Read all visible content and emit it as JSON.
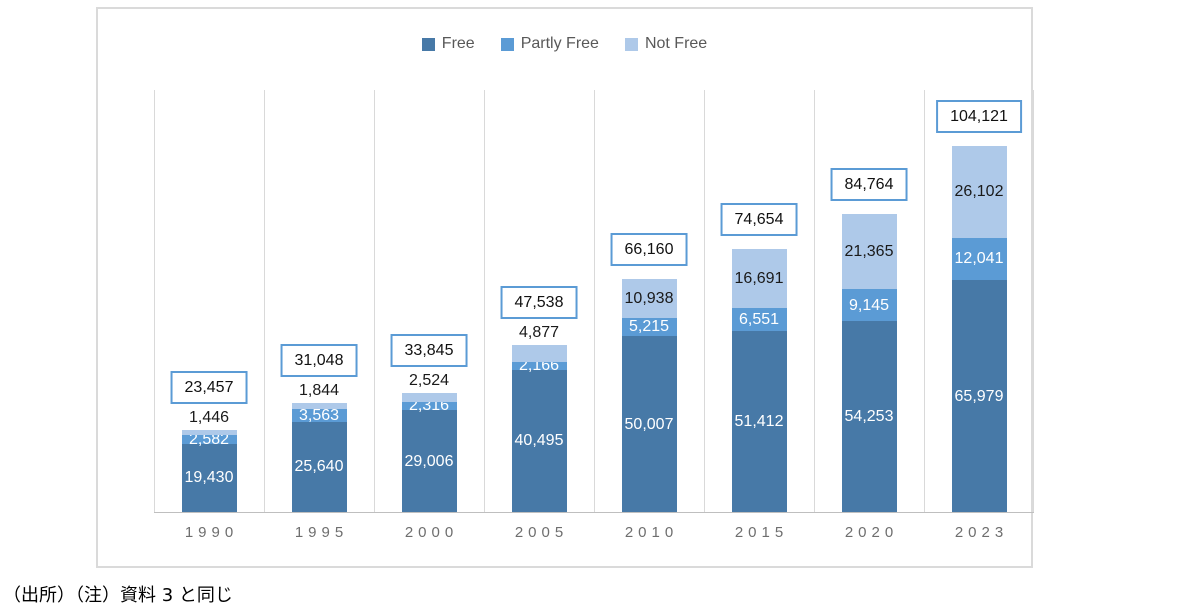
{
  "source_note": "（出所）（注）資料 3 と同じ",
  "colors": {
    "free": "#4779a7",
    "partly_free": "#5b9bd5",
    "not_free": "#aec9e9",
    "total_box_border": "#5b9bd5",
    "grid": "#d9d9d9",
    "axis": "#bfbfbf",
    "label_dark": "#1a1a1a",
    "label_white": "#ffffff",
    "tick_text": "#6e6e6e",
    "legend_text": "#595959"
  },
  "chart_data": {
    "type": "bar",
    "stacked": true,
    "title": "",
    "xlabel": "",
    "ylabel": "",
    "ylim": [
      0,
      120000
    ],
    "legend_position": "top",
    "grid": "vertical category separators only, no y-axis labels",
    "categories": [
      "1990",
      "1995",
      "2000",
      "2005",
      "2010",
      "2015",
      "2020",
      "2023"
    ],
    "series": [
      {
        "name": "Free",
        "color_key": "free",
        "label_color": "white",
        "values": [
          19430,
          25640,
          29006,
          40495,
          50007,
          51412,
          54253,
          65979
        ]
      },
      {
        "name": "Partly Free",
        "color_key": "partly_free",
        "label_color": "white",
        "values": [
          2582,
          3563,
          2316,
          2166,
          5215,
          6551,
          9145,
          12041
        ]
      },
      {
        "name": "Not Free",
        "color_key": "not_free",
        "label_color": "dark",
        "values": [
          1446,
          1844,
          2524,
          4877,
          10938,
          16691,
          21365,
          26102
        ]
      }
    ],
    "totals": [
      23457,
      31048,
      33845,
      47538,
      66160,
      74654,
      84764,
      104121
    ],
    "totals_boxed": true
  }
}
